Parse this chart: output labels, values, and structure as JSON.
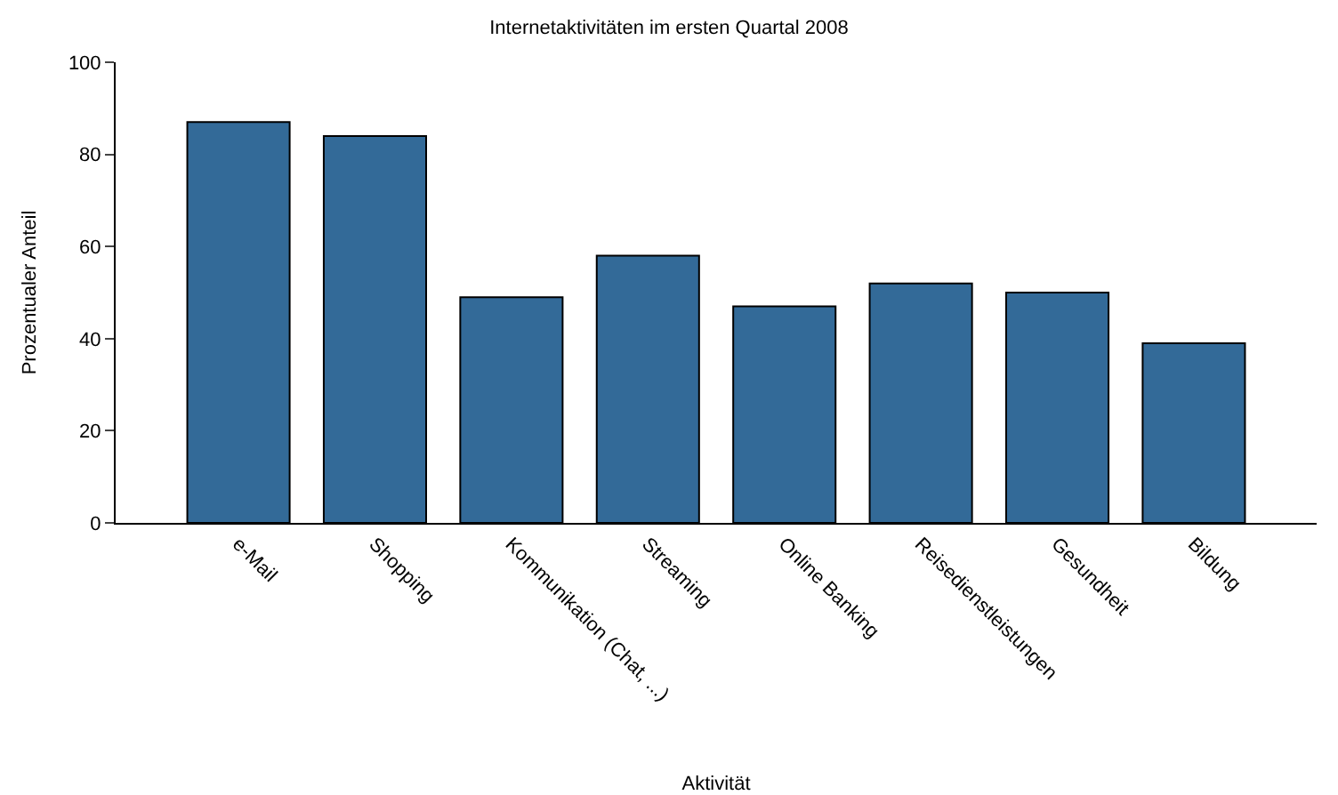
{
  "chart_data": {
    "type": "bar",
    "title": "Internetaktivitäten im ersten Quartal 2008",
    "xlabel": "Aktivität",
    "ylabel": "Prozentualer Anteil",
    "categories": [
      "e-Mail",
      "Shopping",
      "Kommunikation (Chat, ...)",
      "Streaming",
      "Online Banking",
      "Reisedienstleistungen",
      "Gesundheit",
      "Bildung"
    ],
    "values": [
      87,
      84,
      49,
      58,
      47,
      52,
      50,
      39
    ],
    "color": "#336a98",
    "ylim": [
      0,
      100
    ],
    "yticks": [
      0,
      20,
      40,
      60,
      80,
      100
    ]
  }
}
